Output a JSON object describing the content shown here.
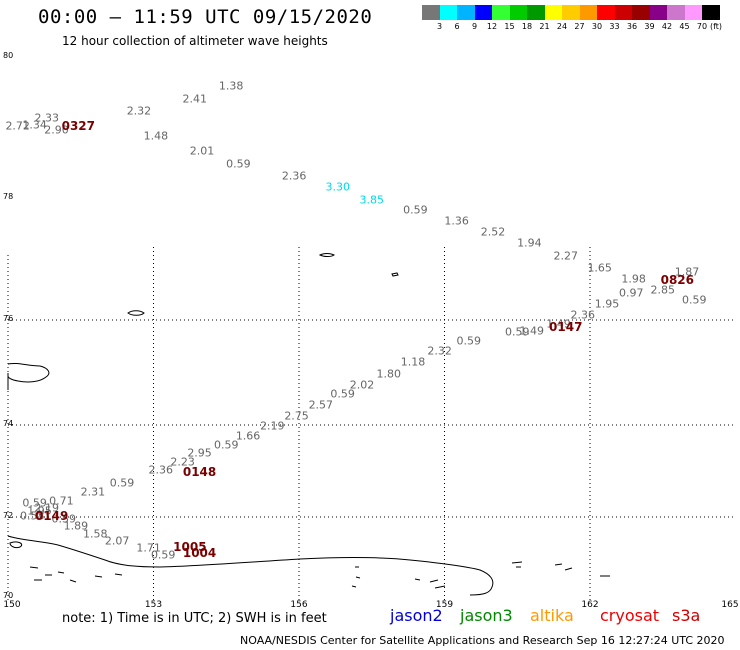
{
  "title": "00:00 – 11:59 UTC 09/15/2020",
  "subtitle": "12 hour collection of altimeter wave heights",
  "color_scale": {
    "unit": "(ft)",
    "colors": [
      "#777777",
      "#00ffff",
      "#00b4ff",
      "#0000ff",
      "#33ff33",
      "#00cc00",
      "#009900",
      "#ffff00",
      "#ffcc00",
      "#ff9900",
      "#ff0000",
      "#cc0000",
      "#990000",
      "#880088",
      "#cc77cc",
      "#ff99ff",
      "#000000"
    ],
    "labels": [
      "3",
      "6",
      "9",
      "12",
      "15",
      "18",
      "21",
      "24",
      "27",
      "30",
      "33",
      "36",
      "39",
      "42",
      "45",
      "70"
    ]
  },
  "lat_labels": [
    "80",
    "78",
    "76",
    "74",
    "72",
    "70"
  ],
  "lon_labels": [
    "150",
    "153",
    "156",
    "159",
    "162",
    "165"
  ],
  "observations": [
    {
      "v": "2.72",
      "lon": 150.2,
      "lat": 79.02
    },
    {
      "v": "1.34",
      "lon": 150.55,
      "lat": 79.04
    },
    {
      "v": "2.33",
      "lon": 150.8,
      "lat": 79.14
    },
    {
      "v": "2.90",
      "lon": 151.0,
      "lat": 78.96
    },
    {
      "v": "2.32",
      "lon": 152.7,
      "lat": 79.23
    },
    {
      "v": "2.41",
      "lon": 153.85,
      "lat": 79.4
    },
    {
      "v": "1.38",
      "lon": 154.6,
      "lat": 79.59
    },
    {
      "v": "1.48",
      "lon": 153.05,
      "lat": 78.88
    },
    {
      "v": "2.01",
      "lon": 154.0,
      "lat": 78.67
    },
    {
      "v": "0.59",
      "lon": 154.75,
      "lat": 78.48
    },
    {
      "v": "2.36",
      "lon": 155.9,
      "lat": 78.31
    },
    {
      "v": "3.30",
      "lon": 156.8,
      "lat": 78.16,
      "hi": true
    },
    {
      "v": "3.85",
      "lon": 157.5,
      "lat": 77.97,
      "hi": true
    },
    {
      "v": "0.59",
      "lon": 158.4,
      "lat": 77.8
    },
    {
      "v": "1.36",
      "lon": 159.25,
      "lat": 77.62
    },
    {
      "v": "2.52",
      "lon": 160.0,
      "lat": 77.45
    },
    {
      "v": "1.94",
      "lon": 160.75,
      "lat": 77.26
    },
    {
      "v": "2.27",
      "lon": 161.5,
      "lat": 77.05
    },
    {
      "v": "1.65",
      "lon": 162.2,
      "lat": 76.86
    },
    {
      "v": "1.98",
      "lon": 162.9,
      "lat": 76.68
    },
    {
      "v": "1.87",
      "lon": 164.0,
      "lat": 76.78
    },
    {
      "v": "2.85",
      "lon": 163.5,
      "lat": 76.5
    },
    {
      "v": "0.97",
      "lon": 162.85,
      "lat": 76.44
    },
    {
      "v": "1.95",
      "lon": 162.35,
      "lat": 76.27
    },
    {
      "v": "0.59",
      "lon": 164.15,
      "lat": 76.33
    },
    {
      "v": "2.36",
      "lon": 161.85,
      "lat": 76.09
    },
    {
      "v": "1.49",
      "lon": 161.35,
      "lat": 75.93
    },
    {
      "v": "1.49",
      "lon": 160.8,
      "lat": 75.8
    },
    {
      "v": "0.59",
      "lon": 160.5,
      "lat": 75.77
    },
    {
      "v": "0.59",
      "lon": 159.5,
      "lat": 75.6
    },
    {
      "v": "2.32",
      "lon": 158.9,
      "lat": 75.41
    },
    {
      "v": "1.18",
      "lon": 158.35,
      "lat": 75.2
    },
    {
      "v": "1.80",
      "lon": 157.85,
      "lat": 74.98
    },
    {
      "v": "2.02",
      "lon": 157.3,
      "lat": 74.77
    },
    {
      "v": "0.59",
      "lon": 156.9,
      "lat": 74.59
    },
    {
      "v": "2.57",
      "lon": 156.45,
      "lat": 74.39
    },
    {
      "v": "2.75",
      "lon": 155.95,
      "lat": 74.18
    },
    {
      "v": "2.19",
      "lon": 155.45,
      "lat": 73.97
    },
    {
      "v": "1.66",
      "lon": 154.95,
      "lat": 73.76
    },
    {
      "v": "0.59",
      "lon": 154.5,
      "lat": 73.57
    },
    {
      "v": "2.95",
      "lon": 153.95,
      "lat": 73.39
    },
    {
      "v": "2.23",
      "lon": 153.6,
      "lat": 73.2
    },
    {
      "v": "2.36",
      "lon": 153.15,
      "lat": 73.03
    },
    {
      "v": "0.59",
      "lon": 152.35,
      "lat": 72.75
    },
    {
      "v": "2.31",
      "lon": 151.75,
      "lat": 72.54
    },
    {
      "v": "0.71",
      "lon": 151.1,
      "lat": 72.35
    },
    {
      "v": "0.59",
      "lon": 150.55,
      "lat": 72.3
    },
    {
      "v": "2.19",
      "lon": 150.8,
      "lat": 72.2
    },
    {
      "v": "1.95",
      "lon": 150.65,
      "lat": 72.13
    },
    {
      "v": "0.58",
      "lon": 150.5,
      "lat": 72.03
    },
    {
      "v": "0.59",
      "lon": 151.15,
      "lat": 71.96
    },
    {
      "v": "1.89",
      "lon": 151.4,
      "lat": 71.77
    },
    {
      "v": "1.58",
      "lon": 151.8,
      "lat": 71.58
    },
    {
      "v": "2.07",
      "lon": 152.25,
      "lat": 71.4
    },
    {
      "v": "1.71",
      "lon": 152.9,
      "lat": 71.22
    },
    {
      "v": "0.59",
      "lon": 153.2,
      "lat": 71.06
    }
  ],
  "time_labels": [
    {
      "t": "0327",
      "lon": 151.45,
      "lat": 79.02
    },
    {
      "t": "0826",
      "lon": 163.8,
      "lat": 76.66
    },
    {
      "t": "0147",
      "lon": 161.5,
      "lat": 75.86
    },
    {
      "t": "0148",
      "lon": 153.95,
      "lat": 72.98
    },
    {
      "t": "0149",
      "lon": 150.9,
      "lat": 72.03
    },
    {
      "t": "1005",
      "lon": 153.75,
      "lat": 71.25
    },
    {
      "t": "1004",
      "lon": 153.95,
      "lat": 71.1
    }
  ],
  "note": "note: 1) Time is in UTC; 2) SWH is in feet",
  "satellites": [
    {
      "name": "jason2",
      "color": "#0000dd"
    },
    {
      "name": "jason3",
      "color": "#008800"
    },
    {
      "name": "altika",
      "color": "#ff9900"
    },
    {
      "name": "cryosat",
      "color": "#ee0000"
    },
    {
      "name": "s3a",
      "color": "#cc0000"
    }
  ],
  "credit": "NOAA/NESDIS Center for Satellite Applications and Research    Sep 16 12:27:24 UTC 2020"
}
